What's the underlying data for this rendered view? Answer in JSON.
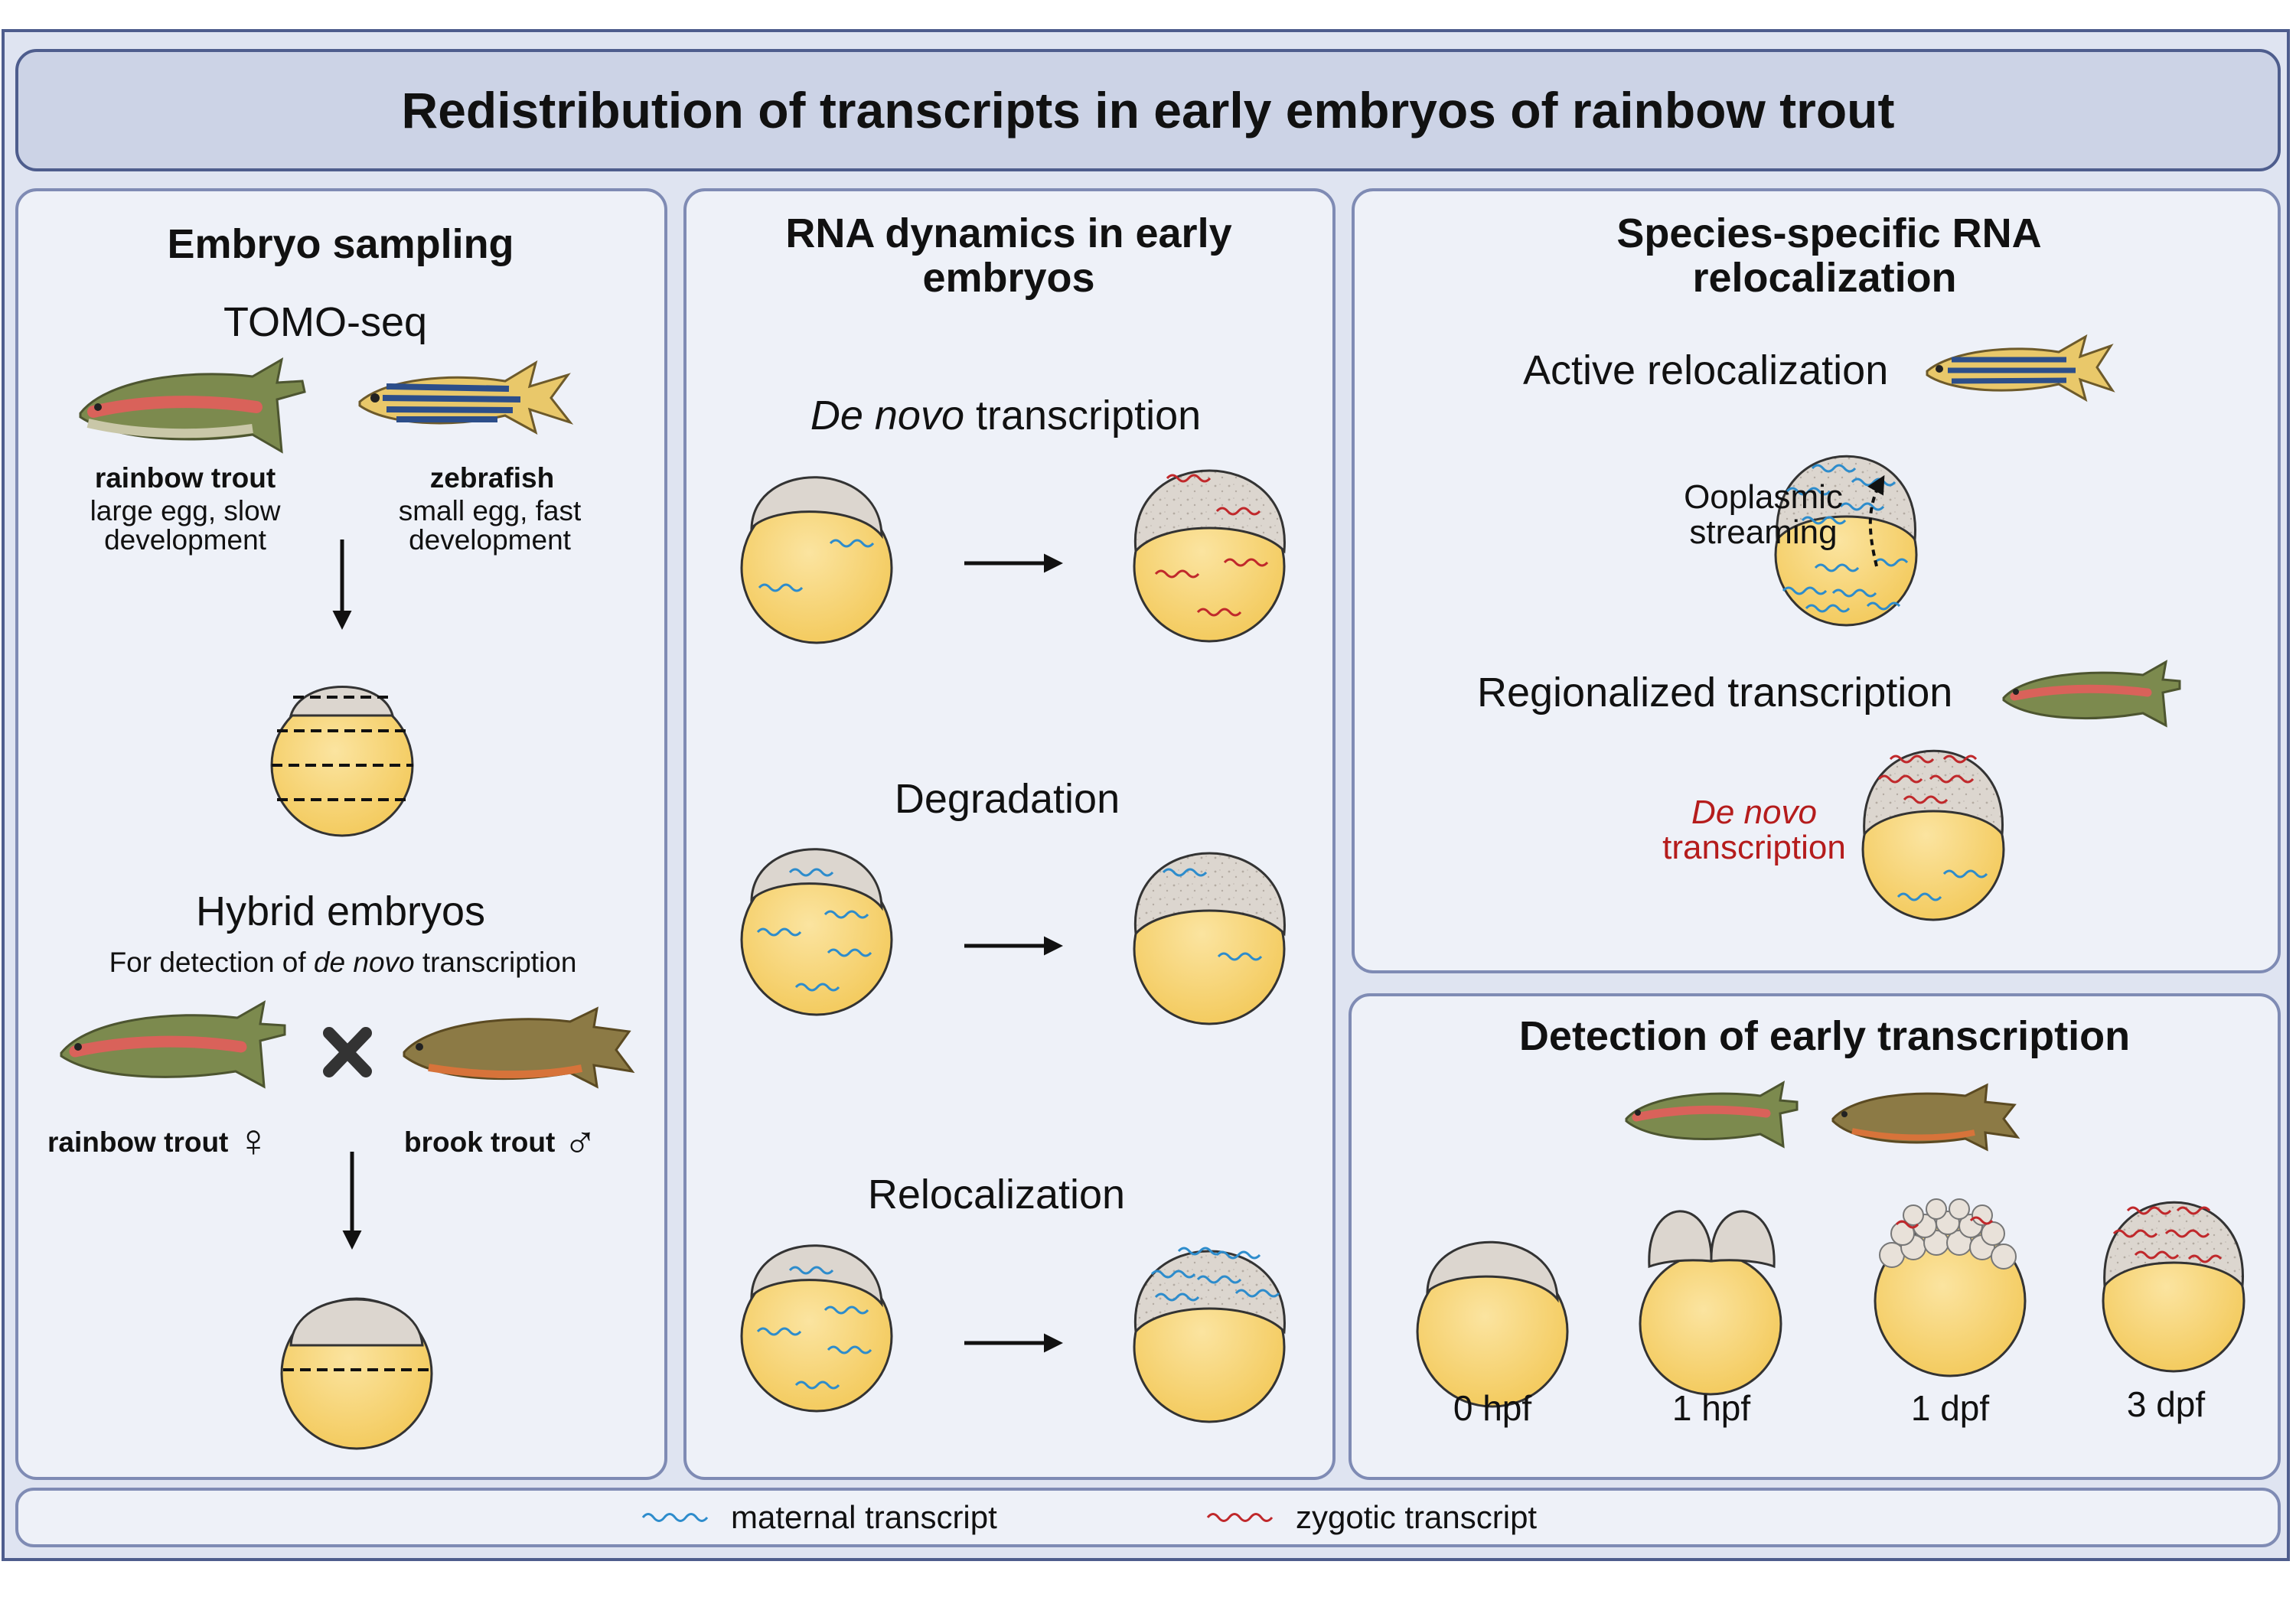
{
  "title": "Redistribution of transcripts in early embryos of rainbow trout",
  "panel_sampling": {
    "heading": "Embryo sampling",
    "tomo_label": "TOMO-seq",
    "trout_name": "rainbow trout",
    "trout_desc_1": "large egg, slow",
    "trout_desc_2": "development",
    "zebrafish_name": "zebrafish",
    "zebrafish_desc_1": "small egg, fast",
    "zebrafish_desc_2": "development",
    "hybrid_heading": "Hybrid embryos",
    "hybrid_sub_pre": "For detection of ",
    "hybrid_sub_em": "de novo",
    "hybrid_sub_post": " transcription",
    "female_label": "rainbow trout",
    "female_symbol": "♀",
    "male_label": "brook trout",
    "male_symbol": "♂",
    "cross_symbol": "✖"
  },
  "panel_dynamics": {
    "heading_1": "RNA dynamics in early",
    "heading_2": "embryos",
    "denovo_em": "De novo",
    "denovo_rest": " transcription",
    "degradation": "Degradation",
    "relocalization": "Relocalization"
  },
  "panel_species": {
    "heading_1": "Species-specific RNA",
    "heading_2": "relocalization",
    "active": "Active relocalization",
    "ooplasmic_1": "Ooplasmic",
    "ooplasmic_2": "streaming",
    "regionalized": "Regionalized transcription",
    "denovo_1": "De novo",
    "denovo_2": "transcription"
  },
  "panel_detection": {
    "heading": "Detection of early transcription",
    "stages": [
      "0 hpf",
      "1 hpf",
      "1 dpf",
      "3 dpf"
    ]
  },
  "legend": {
    "maternal": "maternal transcript",
    "zygotic": "zygotic transcript"
  },
  "colors": {
    "yolk": "#f7d57a",
    "maternal": "#2d8ccc",
    "zygotic": "#c0282b",
    "frame": "#4e5d8d"
  }
}
